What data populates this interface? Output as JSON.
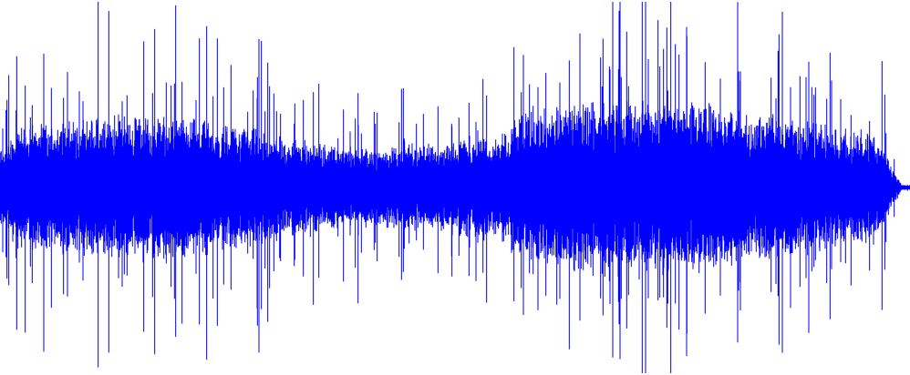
{
  "waveform": {
    "color": "#0000ff",
    "background": "#ffffff"
  }
}
